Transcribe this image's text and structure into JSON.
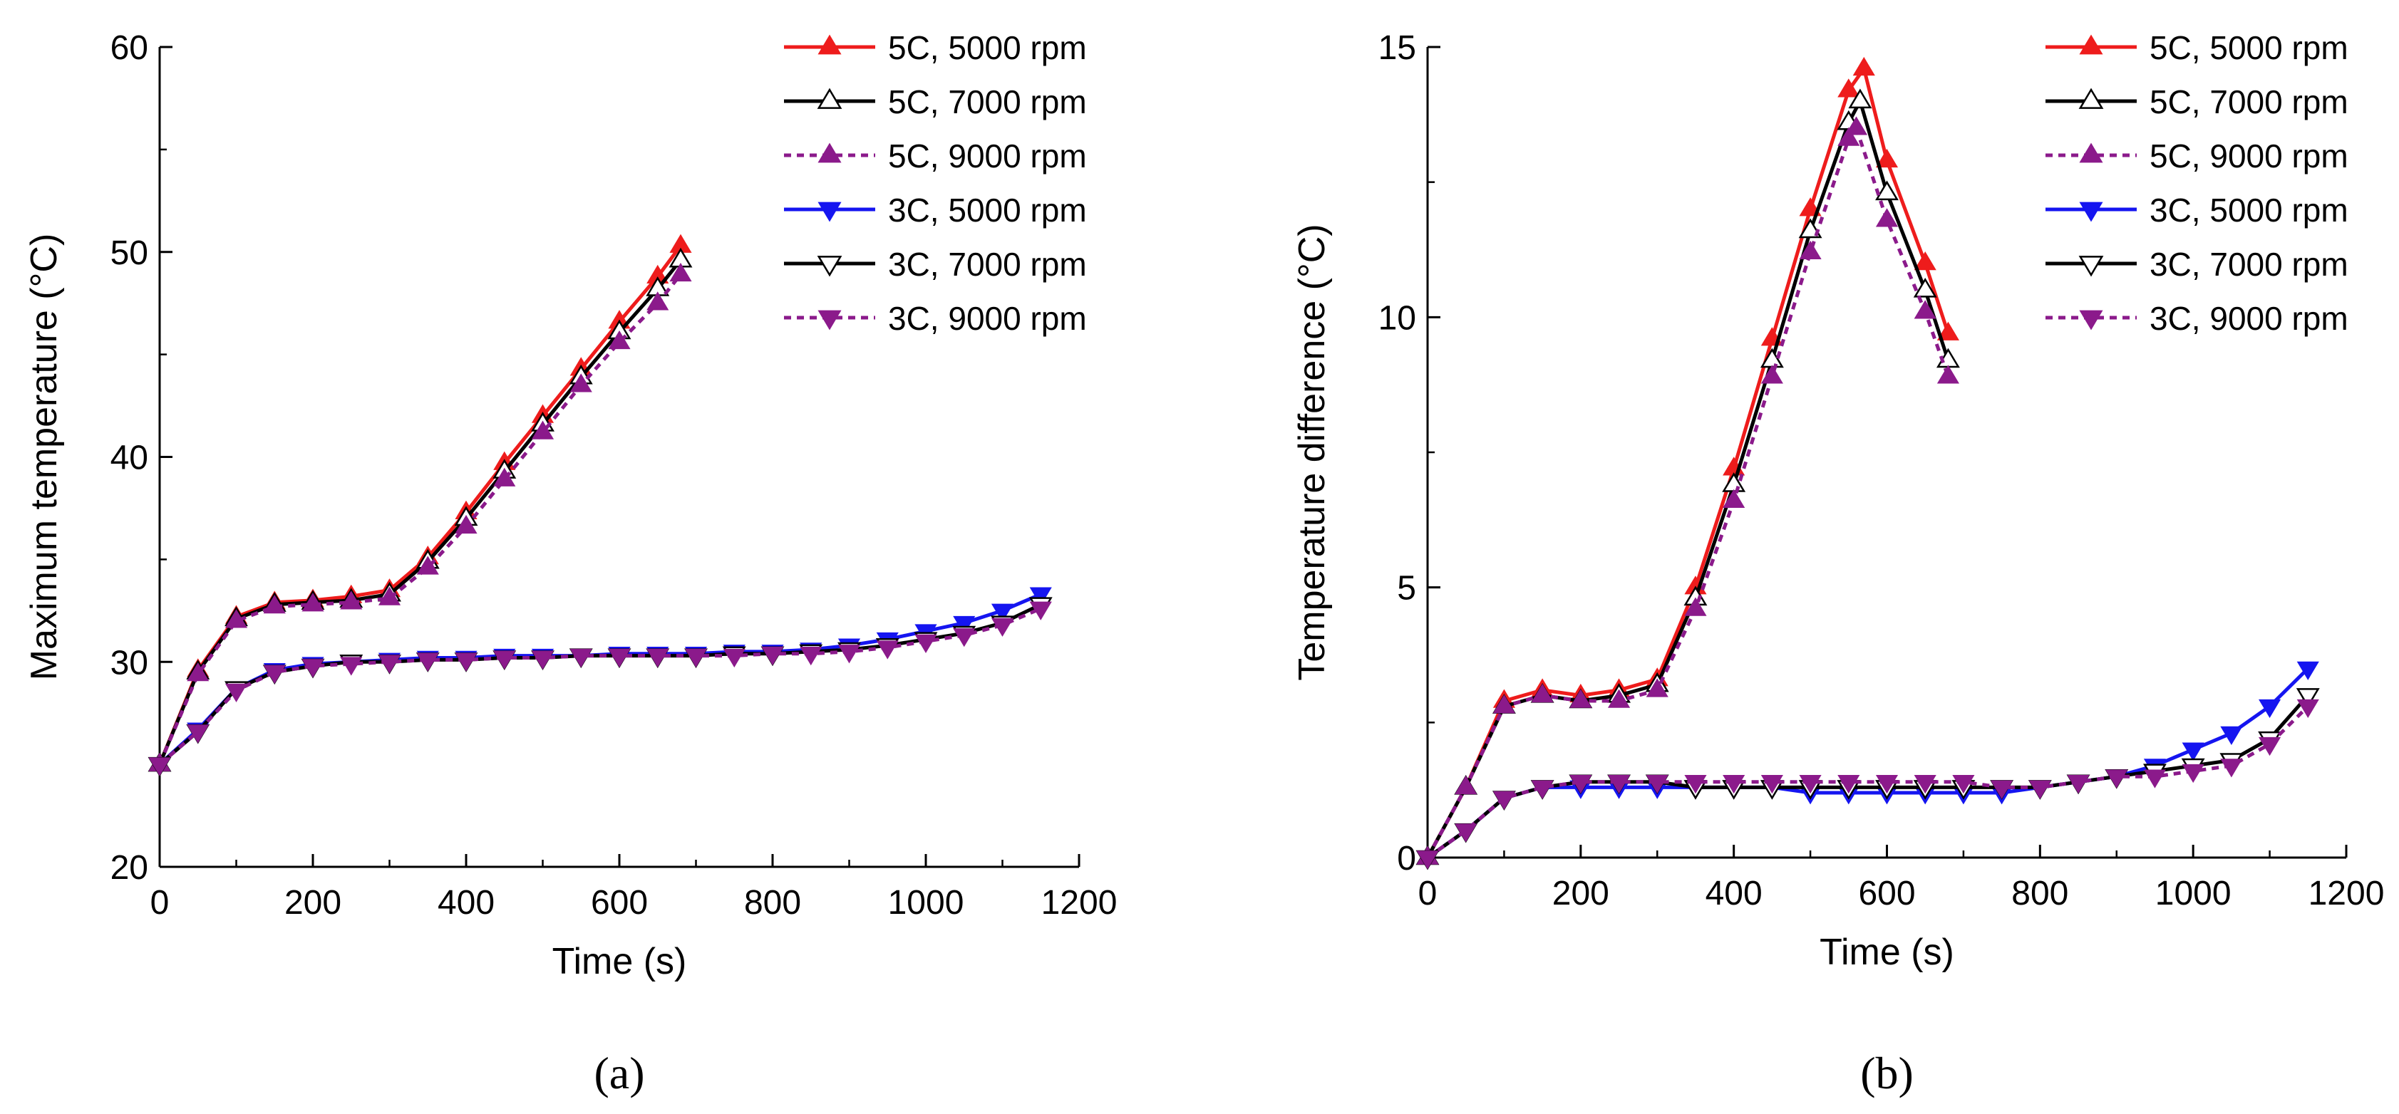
{
  "figure": {
    "legend_labels": [
      "5C, 5000 rpm",
      "5C, 7000 rpm",
      "5C, 9000 rpm",
      "3C, 5000 rpm",
      "3C, 7000 rpm",
      "3C, 9000 rpm"
    ],
    "colors": {
      "red": "#ee1c1c",
      "black": "#000000",
      "purple": "#8b1a8b",
      "blue": "#1515f0"
    }
  },
  "chart_data": [
    {
      "type": "line",
      "panel_label": "(a)",
      "panel_letter": "a",
      "title": "",
      "xlabel": "Time (s)",
      "ylabel": "Maximum temperature (°C)",
      "xlim": [
        0,
        1200
      ],
      "ylim": [
        20,
        60
      ],
      "xticks": [
        0,
        200,
        400,
        600,
        800,
        1000,
        1200
      ],
      "yticks": [
        20,
        30,
        40,
        50,
        60
      ],
      "legend_position": "top-right",
      "series": [
        {
          "name": "5C, 5000 rpm",
          "color": "#ee1c1c",
          "dash": "solid",
          "marker": "triangle-up",
          "fill": "filled",
          "x": [
            0,
            50,
            100,
            150,
            200,
            250,
            300,
            350,
            400,
            450,
            500,
            550,
            600,
            650,
            680
          ],
          "y": [
            25.0,
            29.6,
            32.2,
            32.9,
            33.0,
            33.2,
            33.5,
            35.1,
            37.3,
            39.7,
            42.0,
            44.3,
            46.6,
            48.8,
            50.3
          ]
        },
        {
          "name": "5C, 7000 rpm",
          "color": "#000000",
          "dash": "solid",
          "marker": "triangle-up",
          "fill": "open",
          "x": [
            0,
            50,
            100,
            150,
            200,
            250,
            300,
            350,
            400,
            450,
            500,
            550,
            600,
            650,
            680
          ],
          "y": [
            25.0,
            29.5,
            32.1,
            32.8,
            32.9,
            33.0,
            33.3,
            34.9,
            37.0,
            39.3,
            41.6,
            43.9,
            46.1,
            48.2,
            49.6
          ]
        },
        {
          "name": "5C, 9000 rpm",
          "color": "#8b1a8b",
          "dash": "dashed",
          "marker": "triangle-up",
          "fill": "filled",
          "x": [
            0,
            50,
            100,
            150,
            200,
            250,
            300,
            350,
            400,
            450,
            500,
            550,
            600,
            650,
            680
          ],
          "y": [
            25.0,
            29.4,
            32.0,
            32.7,
            32.8,
            32.9,
            33.1,
            34.6,
            36.6,
            38.9,
            41.2,
            43.5,
            45.6,
            47.5,
            48.9
          ]
        },
        {
          "name": "3C, 5000 rpm",
          "color": "#1515f0",
          "dash": "solid",
          "marker": "triangle-down",
          "fill": "filled",
          "x": [
            0,
            50,
            100,
            150,
            200,
            250,
            300,
            350,
            400,
            450,
            500,
            550,
            600,
            650,
            700,
            750,
            800,
            850,
            900,
            950,
            1000,
            1050,
            1100,
            1150
          ],
          "y": [
            25.0,
            26.7,
            28.7,
            29.6,
            29.9,
            30.0,
            30.1,
            30.2,
            30.2,
            30.3,
            30.3,
            30.3,
            30.4,
            30.4,
            30.4,
            30.5,
            30.5,
            30.6,
            30.8,
            31.1,
            31.5,
            31.9,
            32.5,
            33.3
          ]
        },
        {
          "name": "3C, 7000 rpm",
          "color": "#000000",
          "dash": "solid",
          "marker": "triangle-down",
          "fill": "open",
          "x": [
            0,
            50,
            100,
            150,
            200,
            250,
            300,
            350,
            400,
            450,
            500,
            550,
            600,
            650,
            700,
            750,
            800,
            850,
            900,
            950,
            1000,
            1050,
            1100,
            1150
          ],
          "y": [
            25.0,
            26.6,
            28.7,
            29.5,
            29.8,
            30.0,
            30.0,
            30.1,
            30.1,
            30.2,
            30.2,
            30.3,
            30.3,
            30.3,
            30.3,
            30.4,
            30.4,
            30.5,
            30.6,
            30.8,
            31.1,
            31.4,
            31.9,
            32.8
          ]
        },
        {
          "name": "3C, 9000 rpm",
          "color": "#8b1a8b",
          "dash": "dashed",
          "marker": "triangle-down",
          "fill": "filled",
          "x": [
            0,
            50,
            100,
            150,
            200,
            250,
            300,
            350,
            400,
            450,
            500,
            550,
            600,
            650,
            700,
            750,
            800,
            850,
            900,
            950,
            1000,
            1050,
            1100,
            1150
          ],
          "y": [
            25.0,
            26.6,
            28.6,
            29.5,
            29.8,
            29.9,
            30.0,
            30.1,
            30.1,
            30.2,
            30.2,
            30.3,
            30.3,
            30.3,
            30.3,
            30.3,
            30.4,
            30.4,
            30.5,
            30.7,
            31.0,
            31.3,
            31.8,
            32.6
          ]
        }
      ]
    },
    {
      "type": "line",
      "panel_label": "(b)",
      "panel_letter": "b",
      "title": "",
      "xlabel": "Time (s)",
      "ylabel": "Temperature difference (°C)",
      "xlim": [
        0,
        1200
      ],
      "ylim": [
        0,
        15
      ],
      "xticks": [
        0,
        200,
        400,
        600,
        800,
        1000,
        1200
      ],
      "yticks": [
        0,
        5,
        10,
        15
      ],
      "legend_position": "top-right",
      "series": [
        {
          "name": "5C, 5000 rpm",
          "color": "#ee1c1c",
          "dash": "solid",
          "marker": "triangle-up",
          "fill": "filled",
          "x": [
            0,
            50,
            100,
            150,
            200,
            250,
            300,
            350,
            400,
            450,
            500,
            550,
            570,
            600,
            650,
            680
          ],
          "y": [
            0.0,
            1.3,
            2.9,
            3.1,
            3.0,
            3.1,
            3.3,
            5.0,
            7.2,
            9.6,
            12.0,
            14.2,
            14.6,
            12.9,
            11.0,
            9.7
          ]
        },
        {
          "name": "5C, 7000 rpm",
          "color": "#000000",
          "dash": "solid",
          "marker": "triangle-up",
          "fill": "open",
          "x": [
            0,
            50,
            100,
            150,
            200,
            250,
            300,
            350,
            400,
            450,
            500,
            550,
            565,
            600,
            650,
            680
          ],
          "y": [
            0.0,
            1.3,
            2.8,
            3.0,
            2.9,
            3.0,
            3.2,
            4.8,
            6.9,
            9.2,
            11.6,
            13.6,
            14.0,
            12.3,
            10.5,
            9.2
          ]
        },
        {
          "name": "5C, 9000 rpm",
          "color": "#8b1a8b",
          "dash": "dashed",
          "marker": "triangle-up",
          "fill": "filled",
          "x": [
            0,
            50,
            100,
            150,
            200,
            250,
            300,
            350,
            400,
            450,
            500,
            550,
            560,
            600,
            650,
            680
          ],
          "y": [
            0.0,
            1.3,
            2.8,
            3.0,
            2.9,
            2.9,
            3.1,
            4.6,
            6.6,
            8.9,
            11.2,
            13.3,
            13.5,
            11.8,
            10.1,
            8.9
          ]
        },
        {
          "name": "3C, 5000 rpm",
          "color": "#1515f0",
          "dash": "solid",
          "marker": "triangle-down",
          "fill": "filled",
          "x": [
            0,
            50,
            100,
            150,
            200,
            250,
            300,
            350,
            400,
            450,
            500,
            550,
            600,
            650,
            700,
            750,
            800,
            850,
            900,
            950,
            1000,
            1050,
            1100,
            1150
          ],
          "y": [
            0.0,
            0.5,
            1.1,
            1.3,
            1.3,
            1.3,
            1.3,
            1.3,
            1.3,
            1.3,
            1.2,
            1.2,
            1.2,
            1.2,
            1.2,
            1.2,
            1.3,
            1.4,
            1.5,
            1.7,
            2.0,
            2.3,
            2.8,
            3.5
          ]
        },
        {
          "name": "3C, 7000 rpm",
          "color": "#000000",
          "dash": "solid",
          "marker": "triangle-down",
          "fill": "open",
          "x": [
            0,
            50,
            100,
            150,
            200,
            250,
            300,
            350,
            400,
            450,
            500,
            550,
            600,
            650,
            700,
            750,
            800,
            850,
            900,
            950,
            1000,
            1050,
            1100,
            1150
          ],
          "y": [
            0.0,
            0.5,
            1.1,
            1.3,
            1.4,
            1.4,
            1.4,
            1.3,
            1.3,
            1.3,
            1.3,
            1.3,
            1.3,
            1.3,
            1.3,
            1.3,
            1.3,
            1.4,
            1.5,
            1.6,
            1.7,
            1.8,
            2.2,
            3.0
          ]
        },
        {
          "name": "3C, 9000 rpm",
          "color": "#8b1a8b",
          "dash": "dashed",
          "marker": "triangle-down",
          "fill": "filled",
          "x": [
            0,
            50,
            100,
            150,
            200,
            250,
            300,
            350,
            400,
            450,
            500,
            550,
            600,
            650,
            700,
            750,
            800,
            850,
            900,
            950,
            1000,
            1050,
            1100,
            1150
          ],
          "y": [
            0.0,
            0.5,
            1.1,
            1.3,
            1.4,
            1.4,
            1.4,
            1.4,
            1.4,
            1.4,
            1.4,
            1.4,
            1.4,
            1.4,
            1.4,
            1.3,
            1.3,
            1.4,
            1.5,
            1.5,
            1.6,
            1.7,
            2.1,
            2.8
          ]
        }
      ]
    }
  ]
}
